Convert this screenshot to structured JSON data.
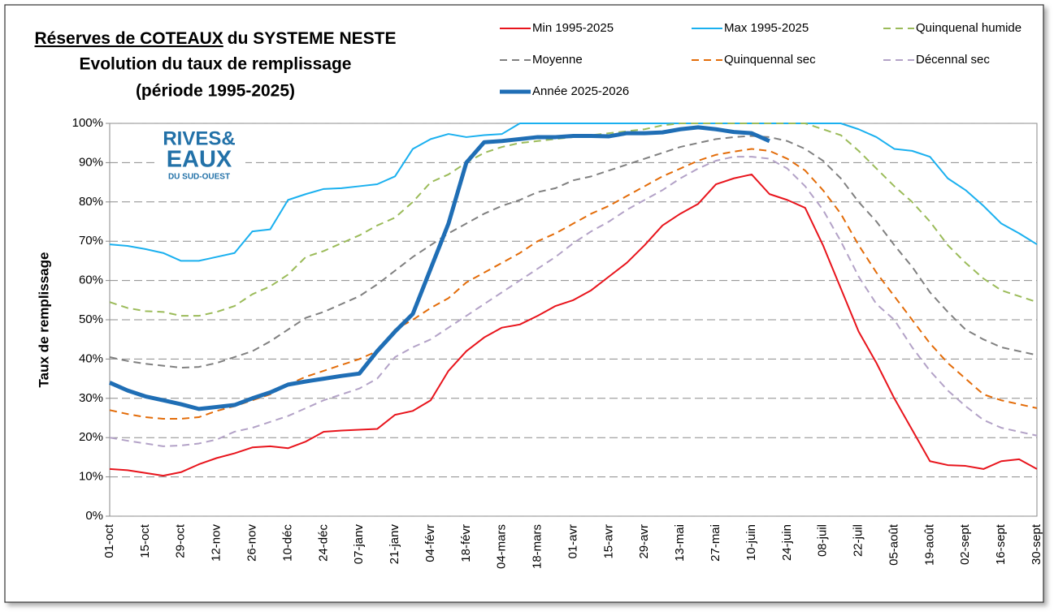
{
  "chart_data": {
    "type": "line",
    "title": [
      [
        "Réserves de COTEAUX",
        "du SYSTEME NESTE"
      ],
      "Evolution du taux de remplissage",
      "(période 1995-2025)"
    ],
    "logo": [
      "RIVES&",
      "EAUX",
      "DU SUD-OUEST"
    ],
    "ylabel": "Taux de remplissage",
    "categories": [
      "01-oct",
      null,
      "15-oct",
      null,
      "29-oct",
      null,
      "12-nov",
      null,
      "26-nov",
      null,
      "10-déc",
      null,
      "24-déc",
      null,
      "07-janv",
      null,
      "21-janv",
      null,
      "04-févr",
      null,
      "18-févr",
      null,
      "04-mars",
      null,
      "18-mars",
      null,
      "01-avr",
      null,
      "15-avr",
      null,
      "29-avr",
      null,
      "13-mai",
      null,
      "27-mai",
      null,
      "10-juin",
      null,
      "24-juin",
      null,
      "08-juil",
      null,
      "22-juil",
      null,
      "05-août",
      null,
      "19-août",
      null,
      "02-sept",
      null,
      "16-sept",
      null,
      "30-sept"
    ],
    "ylim": [
      0,
      100
    ],
    "yticks": [
      {
        "value": 0,
        "label": "0%"
      },
      {
        "value": 10,
        "label": "10%"
      },
      {
        "value": 20,
        "label": "20%"
      },
      {
        "value": 30,
        "label": "30%"
      },
      {
        "value": 40,
        "label": "40%"
      },
      {
        "value": 50,
        "label": "50%"
      },
      {
        "value": 60,
        "label": "60%"
      },
      {
        "value": 70,
        "label": "70%"
      },
      {
        "value": 80,
        "label": "80%"
      },
      {
        "value": 90,
        "label": "90%"
      },
      {
        "value": 100,
        "label": "100%"
      }
    ],
    "grid": true,
    "series": [
      {
        "name": "Min 1995-2025",
        "color": "#e8141c",
        "dashed": false,
        "linewidth": 2,
        "values": [
          12,
          11.7,
          11,
          10.3,
          11.2,
          13.2,
          14.8,
          16,
          17.5,
          17.8,
          17.3,
          19,
          21.5,
          21.8,
          22,
          22.2,
          25.8,
          26.8,
          29.5,
          37,
          42,
          45.5,
          48,
          48.8,
          51,
          53.5,
          55,
          57.5,
          61,
          64.5,
          69,
          74,
          77,
          79.5,
          84.5,
          86,
          87,
          82,
          80.5,
          78.5,
          69,
          58,
          47,
          39,
          30,
          22,
          14,
          13,
          12.8,
          12,
          14,
          14.5,
          12
        ]
      },
      {
        "name": "Max 1995-2025",
        "color": "#1ab0ef",
        "dashed": false,
        "linewidth": 2,
        "values": [
          69.2,
          68.8,
          68,
          67,
          65,
          65,
          66,
          67,
          72.5,
          73,
          80.5,
          82,
          83.3,
          83.5,
          84,
          84.5,
          86.5,
          93.5,
          96,
          97.3,
          96.5,
          97,
          97.3,
          100,
          100,
          100,
          100,
          100,
          100,
          100,
          100,
          100,
          100,
          100,
          100,
          100,
          100,
          100,
          100,
          100,
          100,
          100,
          98.5,
          96.5,
          93.5,
          93,
          91.5,
          86,
          83,
          79,
          74.5,
          72,
          69.2
        ]
      },
      {
        "name": "Quinquenal humide",
        "color": "#9bbb59",
        "dashed": true,
        "linewidth": 2,
        "values": [
          54.5,
          53,
          52.2,
          52,
          51,
          51,
          52,
          53.5,
          56.5,
          58.5,
          61.5,
          66,
          67.5,
          69.5,
          71.5,
          74,
          76,
          80,
          85,
          87,
          90,
          92.5,
          94,
          95,
          95.5,
          96,
          96.5,
          97,
          97.5,
          98,
          98.5,
          99.5,
          100,
          100,
          100,
          100,
          100,
          100,
          100,
          100,
          98.5,
          97,
          93,
          88.5,
          84,
          80,
          75,
          69,
          64.5,
          60.5,
          57.5,
          56,
          54.5
        ]
      },
      {
        "name": "Moyenne",
        "color": "#808080",
        "dashed": true,
        "linewidth": 2,
        "values": [
          40.5,
          39.5,
          38.8,
          38.3,
          37.8,
          38,
          39,
          40.5,
          42,
          44.5,
          47.5,
          50.5,
          52,
          54,
          56,
          59,
          62.5,
          66,
          69,
          72,
          74.5,
          77,
          79,
          80.5,
          82.5,
          83.5,
          85.5,
          86.5,
          88,
          89.5,
          91,
          92.5,
          94,
          95,
          96,
          96.5,
          96.8,
          96.5,
          95.5,
          93.5,
          90.5,
          86,
          80,
          75,
          69,
          63.5,
          57,
          52,
          47.5,
          45,
          43,
          42,
          41
        ]
      },
      {
        "name": "Quinquennal sec",
        "color": "#e36c09",
        "dashed": true,
        "linewidth": 2,
        "values": [
          27,
          26,
          25.2,
          24.8,
          24.8,
          25.2,
          26.8,
          28,
          29.5,
          31,
          33.5,
          35.5,
          37,
          38.5,
          40,
          42,
          47.5,
          50,
          53,
          55.5,
          59.5,
          62,
          64.5,
          67,
          70,
          72,
          74.5,
          77,
          79,
          81.5,
          84,
          86.5,
          88.5,
          90.5,
          92,
          92.8,
          93.5,
          93,
          91,
          88,
          83,
          77,
          69,
          62,
          56,
          50,
          44,
          39,
          35,
          31,
          29.5,
          28.5,
          27.5
        ]
      },
      {
        "name": "Décennal sec",
        "color": "#b3a2c7",
        "dashed": true,
        "linewidth": 2,
        "values": [
          20,
          19.2,
          18.5,
          17.8,
          18,
          18.5,
          19.5,
          21.5,
          22.5,
          24,
          25.5,
          27.5,
          29.5,
          31,
          32.5,
          35,
          40.5,
          43,
          45,
          48,
          51,
          54,
          57,
          60,
          63,
          66,
          69.5,
          72.5,
          75,
          78,
          80.5,
          83,
          86,
          88.5,
          90.5,
          91.5,
          91.5,
          91,
          88.5,
          84,
          78,
          70,
          61,
          54,
          50,
          43,
          37,
          32,
          28,
          24.5,
          22.5,
          21.5,
          20.5
        ]
      },
      {
        "name": "Année 2025-2026",
        "color": "#1f6eb5",
        "dashed": false,
        "linewidth": 5,
        "values": [
          34,
          32,
          30.5,
          29.5,
          28.5,
          27.3,
          27.8,
          28.3,
          30,
          31.5,
          33.5,
          34.3,
          35,
          35.7,
          36.3,
          42,
          47,
          51.5,
          63,
          74.5,
          90,
          95.2,
          95.5,
          96,
          96.5,
          96.5,
          96.8,
          96.8,
          96.7,
          97.5,
          97.5,
          97.7,
          98.5,
          99,
          98.5,
          97.8,
          97.5,
          95.5,
          null,
          null,
          null,
          null,
          null,
          null,
          null,
          null,
          null,
          null,
          null,
          null,
          null,
          null,
          null
        ]
      }
    ]
  }
}
